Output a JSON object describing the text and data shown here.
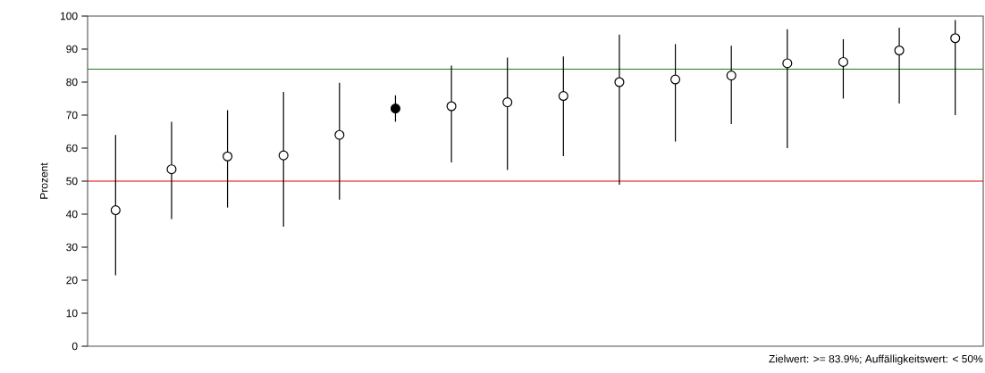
{
  "chart_data": {
    "type": "scatter",
    "ylabel": "Prozent",
    "categories": [
      null,
      null,
      null,
      null,
      null,
      null,
      null,
      null,
      null,
      null,
      null,
      null,
      null,
      null,
      null,
      null
    ],
    "series": [
      {
        "values": [
          41.2,
          53.6,
          57.5,
          57.8,
          64,
          72,
          72.7,
          73.9,
          75.8,
          80,
          80.8,
          82,
          85.7,
          86.1,
          89.6,
          93.3
        ],
        "colors": [
          "#ffffff",
          "#ffffff",
          "#ffffff",
          "#ffffff",
          "#ffffff",
          "#000000",
          "#ffffff",
          "#ffffff",
          "#ffffff",
          "#ffffff",
          "#ffffff",
          "#ffffff",
          "#ffffff",
          "#ffffff",
          "#ffffff",
          "#ffffff"
        ],
        "errors": [
          [
            21.5,
            64
          ],
          [
            38.5,
            68
          ],
          [
            42,
            71.5
          ],
          [
            36.2,
            77
          ],
          [
            44.4,
            79.8
          ],
          [
            68,
            76
          ],
          [
            55.7,
            85
          ],
          [
            53.4,
            87.4
          ],
          [
            57.6,
            87.8
          ],
          [
            48.9,
            94.4
          ],
          [
            62,
            91.5
          ],
          [
            67.3,
            91
          ],
          [
            60,
            96
          ],
          [
            75,
            93
          ],
          [
            73.5,
            96.5
          ],
          [
            70,
            98.8
          ]
        ]
      }
    ],
    "marker": "circle",
    "ylim": [
      0,
      100
    ],
    "yticks": [
      0,
      10,
      20,
      30,
      40,
      50,
      60,
      70,
      80,
      90,
      100
    ],
    "tick_labels": "y",
    "ref_lines": [
      {
        "axis": "y",
        "value": 83.9,
        "color": "#1e7b1e"
      },
      {
        "axis": "y",
        "value": 50,
        "color": "#e00000"
      }
    ],
    "annotations": [
      "Zielwert: >= 83.9%; Auffälligkeitswert: < 50%"
    ]
  }
}
